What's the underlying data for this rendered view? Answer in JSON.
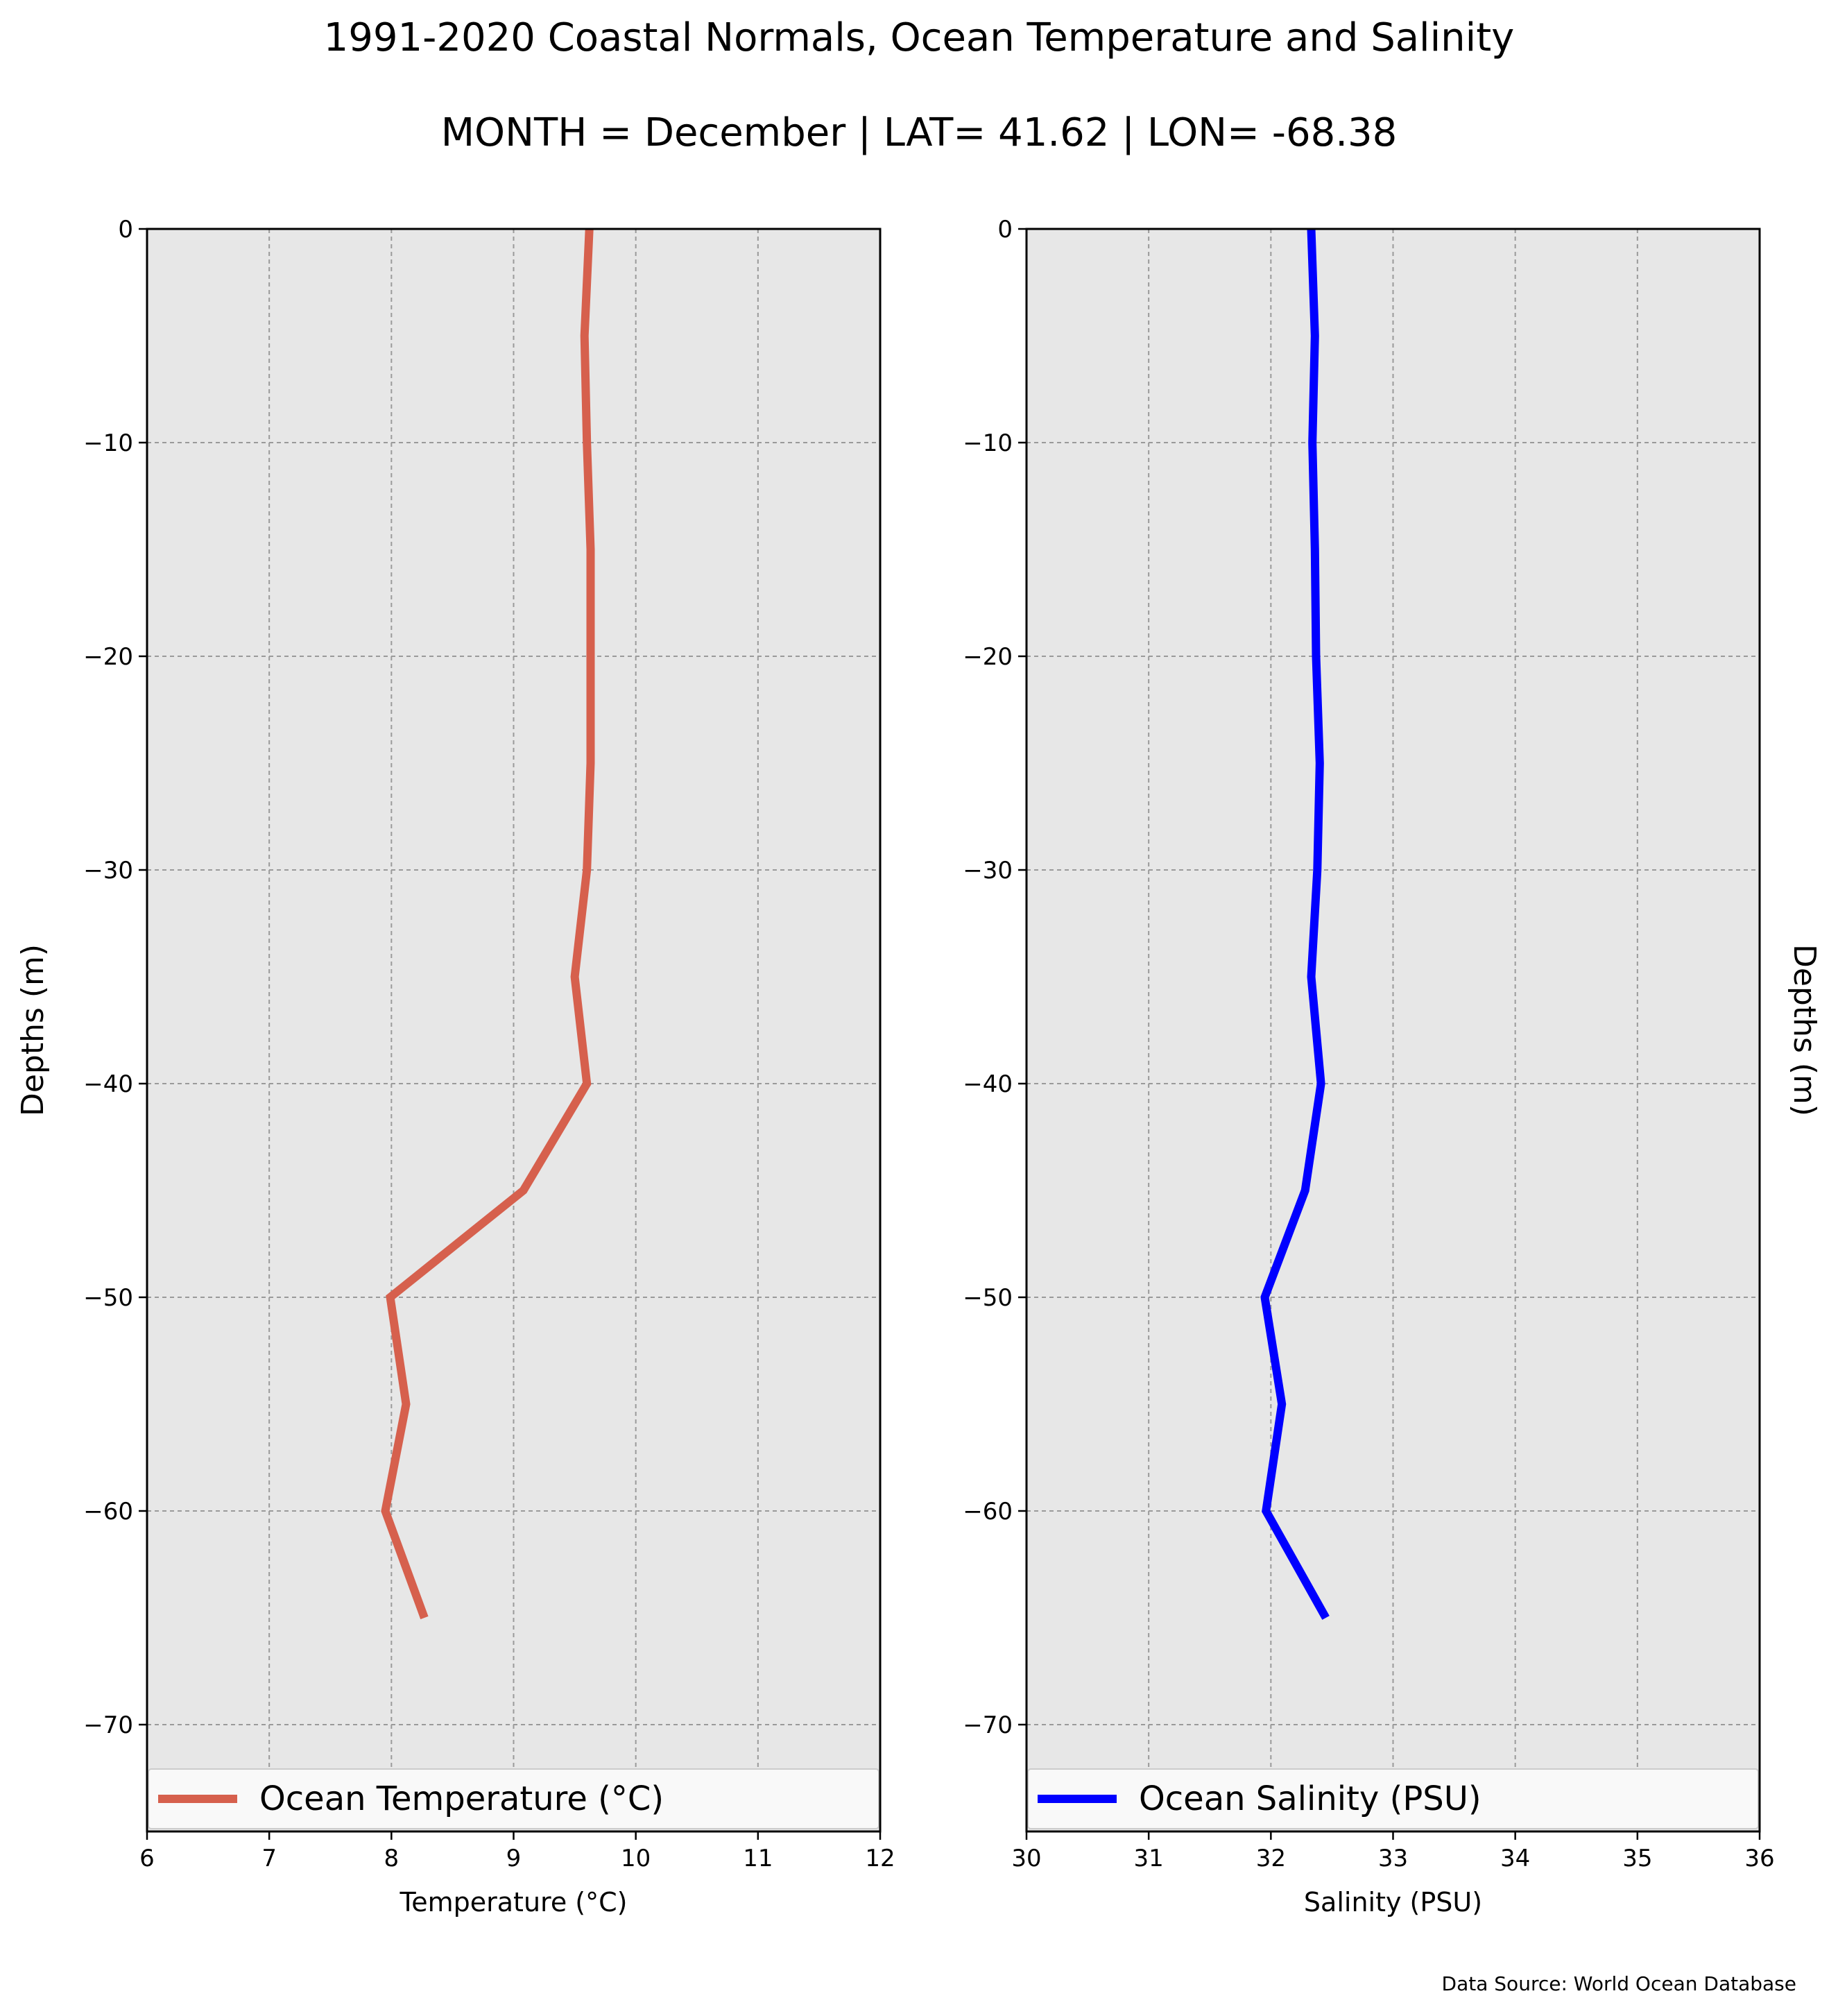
{
  "title": "1991-2020 Coastal Normals, Ocean Temperature and Salinity",
  "subtitle": "MONTH = December | LAT= 41.62 | LON= -68.38",
  "source": "Data Source: World Ocean Database",
  "chart_data": [
    {
      "type": "line",
      "xlabel": "Temperature (°C)",
      "ylabel": "Depths (m)",
      "xlim": [
        6,
        12
      ],
      "ylim": [
        -75,
        0
      ],
      "xticks": [
        6,
        7,
        8,
        9,
        10,
        11,
        12
      ],
      "yticks": [
        0,
        -10,
        -20,
        -30,
        -40,
        -50,
        -60,
        -70
      ],
      "grid": true,
      "legend_position": "bottom",
      "series": [
        {
          "name": "Ocean Temperature (°C)",
          "color": "#d6604d",
          "x": [
            9.62,
            9.58,
            9.6,
            9.63,
            9.63,
            9.63,
            9.6,
            9.5,
            9.6,
            9.08,
            7.99,
            8.12,
            7.95,
            8.27
          ],
          "y": [
            0,
            -5,
            -10,
            -15,
            -20,
            -25,
            -30,
            -35,
            -40,
            -45,
            -50,
            -55,
            -60,
            -65
          ]
        }
      ]
    },
    {
      "type": "line",
      "xlabel": "Salinity (PSU)",
      "ylabel": "Depths (m)",
      "xlim": [
        30,
        36
      ],
      "ylim": [
        -75,
        0
      ],
      "xticks": [
        30,
        31,
        32,
        33,
        34,
        35,
        36
      ],
      "yticks": [
        0,
        -10,
        -20,
        -30,
        -40,
        -50,
        -60,
        -70
      ],
      "grid": true,
      "legend_position": "bottom",
      "series": [
        {
          "name": "Ocean Salinity (PSU)",
          "color": "#0000ff",
          "x": [
            32.33,
            32.36,
            32.34,
            32.36,
            32.37,
            32.4,
            32.38,
            32.33,
            32.41,
            32.28,
            31.95,
            32.09,
            31.96,
            32.45
          ],
          "y": [
            0,
            -5,
            -10,
            -15,
            -20,
            -25,
            -30,
            -35,
            -40,
            -45,
            -50,
            -55,
            -60,
            -65
          ]
        }
      ]
    }
  ]
}
